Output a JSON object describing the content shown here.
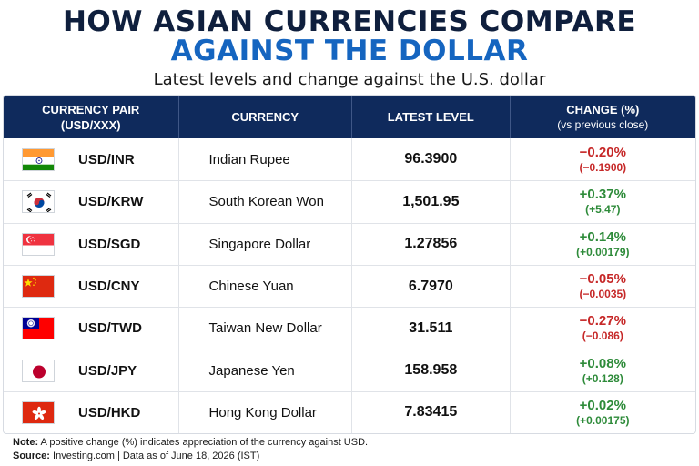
{
  "title_line1": "HOW ASIAN CURRENCIES COMPARE",
  "title_line2": "AGAINST THE DOLLAR",
  "subtitle": "Latest levels and change against the U.S. dollar",
  "headers": {
    "pair_line1": "CURRENCY PAIR",
    "pair_line2": "(USD/XXX)",
    "currency": "CURRENCY",
    "level": "LATEST LEVEL",
    "change_line1": "CHANGE (%)",
    "change_line2": "(vs previous close)"
  },
  "rows": [
    {
      "pair": "USD/INR",
      "currency": "Indian Rupee",
      "level": "96.3900",
      "change_pct": "−0.20%",
      "change_abs": "(−0.1900)",
      "direction": "neg",
      "flag": "india-flag-icon"
    },
    {
      "pair": "USD/KRW",
      "currency": "South Korean Won",
      "level": "1,501.95",
      "change_pct": "+0.37%",
      "change_abs": "(+5.47)",
      "direction": "pos",
      "flag": "south-korea-flag-icon"
    },
    {
      "pair": "USD/SGD",
      "currency": "Singapore Dollar",
      "level": "1.27856",
      "change_pct": "+0.14%",
      "change_abs": "(+0.00179)",
      "direction": "pos",
      "flag": "singapore-flag-icon"
    },
    {
      "pair": "USD/CNY",
      "currency": "Chinese Yuan",
      "level": "6.7970",
      "change_pct": "−0.05%",
      "change_abs": "(−0.0035)",
      "direction": "neg",
      "flag": "china-flag-icon"
    },
    {
      "pair": "USD/TWD",
      "currency": "Taiwan New Dollar",
      "level": "31.511",
      "change_pct": "−0.27%",
      "change_abs": "(−0.086)",
      "direction": "neg",
      "flag": "taiwan-flag-icon"
    },
    {
      "pair": "USD/JPY",
      "currency": "Japanese Yen",
      "level": "158.958",
      "change_pct": "+0.08%",
      "change_abs": "(+0.128)",
      "direction": "pos",
      "flag": "japan-flag-icon"
    },
    {
      "pair": "USD/HKD",
      "currency": "Hong Kong Dollar",
      "level": "7.83415",
      "change_pct": "+0.02%",
      "change_abs": "(+0.00175)",
      "direction": "pos",
      "flag": "hong-kong-flag-icon"
    }
  ],
  "footer": {
    "note_label": "Note:",
    "note_text": " A positive change (%) indicates appreciation of the currency against USD.",
    "source_label": "Source:",
    "source_text": " Investing.com | Data as of June 18, 2026 (IST)"
  },
  "colors": {
    "header_bg": "#0f2a5c",
    "title_dark": "#0f1f3d",
    "title_blue": "#1565c0",
    "negative": "#c62828",
    "positive": "#2e8b3a"
  }
}
